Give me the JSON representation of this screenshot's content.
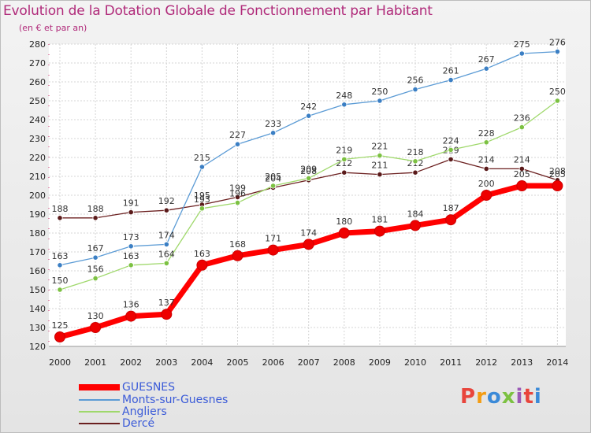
{
  "title": "Evolution de la Dotation Globale de Fonctionnement par Habitant",
  "subtitle": "(en € et par an)",
  "logo": {
    "text": "Proxiti",
    "colors": [
      "#e8453c",
      "#f39c12",
      "#3b8ad8",
      "#7cc142",
      "#9b59b6",
      "#e8453c",
      "#3b8ad8"
    ]
  },
  "chart_data": {
    "type": "line",
    "x": [
      2000,
      2001,
      2002,
      2003,
      2004,
      2005,
      2006,
      2007,
      2008,
      2009,
      2010,
      2011,
      2012,
      2013,
      2014
    ],
    "ylim": [
      120,
      280
    ],
    "yticks": [
      120,
      130,
      140,
      150,
      160,
      170,
      180,
      190,
      200,
      210,
      220,
      230,
      240,
      250,
      260,
      270,
      280
    ],
    "grid": true,
    "legend_position": "bottom-left",
    "series": [
      {
        "name": "Dercé",
        "color": "#6b1f1f",
        "marker": "#5a1a1a",
        "values": [
          188,
          188,
          191,
          192,
          195,
          199,
          204,
          208,
          212,
          211,
          212,
          219,
          214,
          214,
          208
        ]
      },
      {
        "name": "Angliers",
        "color": "#9fd86b",
        "marker": "#7cc142",
        "values": [
          150,
          156,
          163,
          164,
          193,
          196,
          205,
          209,
          219,
          221,
          218,
          224,
          228,
          236,
          250
        ]
      },
      {
        "name": "Monts-sur-Guesnes",
        "color": "#5b9bd5",
        "marker": "#3b7fc4",
        "values": [
          163,
          167,
          173,
          174,
          215,
          227,
          233,
          242,
          248,
          250,
          256,
          261,
          267,
          275,
          276
        ]
      },
      {
        "name": "GUESNES",
        "color": "#ff0000",
        "marker": "#ee0000",
        "bold": true,
        "values": [
          125,
          130,
          136,
          137,
          163,
          168,
          171,
          174,
          180,
          181,
          184,
          187,
          200,
          205,
          205
        ]
      }
    ],
    "legend_order": [
      "GUESNES",
      "Monts-sur-Guesnes",
      "Angliers",
      "Dercé"
    ]
  }
}
